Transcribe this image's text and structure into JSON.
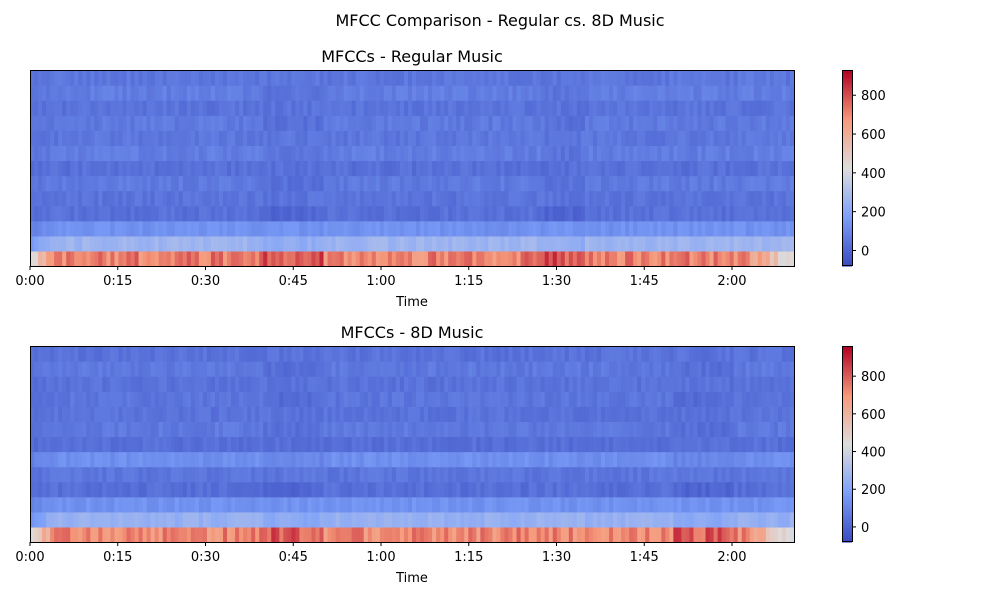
{
  "figure": {
    "suptitle": "MFCC Comparison - Regular cs. 8D Music"
  },
  "colormap": "coolwarm",
  "chart_data": [
    {
      "type": "heatmap",
      "title": "MFCCs - Regular Music",
      "xlabel": "Time",
      "ylabel": "",
      "x_ticks": [
        "0:00",
        "0:15",
        "0:30",
        "0:45",
        "1:00",
        "1:15",
        "1:30",
        "1:45",
        "2:00"
      ],
      "x_tick_seconds": [
        0,
        15,
        30,
        45,
        60,
        75,
        90,
        105,
        120
      ],
      "xlim_seconds": [
        0,
        130.6
      ],
      "n_coefficients": 13,
      "colorbar": {
        "ticks": [
          0,
          200,
          400,
          600,
          800
        ],
        "range": [
          -80,
          930
        ]
      },
      "coefficient_levels": [
        720,
        260,
        130,
        30,
        40,
        60,
        30,
        70,
        50,
        60,
        40,
        70,
        50
      ],
      "intense_segments_seconds": [
        [
          40,
          50
        ],
        [
          88,
          95
        ]
      ],
      "grid": false
    },
    {
      "type": "heatmap",
      "title": "MFCCs - 8D Music",
      "xlabel": "Time",
      "ylabel": "",
      "x_ticks": [
        "0:00",
        "0:15",
        "0:30",
        "0:45",
        "1:00",
        "1:15",
        "1:30",
        "1:45",
        "2:00"
      ],
      "x_tick_seconds": [
        0,
        15,
        30,
        45,
        60,
        75,
        90,
        105,
        120
      ],
      "xlim_seconds": [
        0,
        130.6
      ],
      "n_coefficients": 13,
      "colorbar": {
        "ticks": [
          0,
          200,
          400,
          600,
          800
        ],
        "range": [
          -80,
          960
        ]
      },
      "coefficient_levels": [
        730,
        250,
        140,
        30,
        50,
        130,
        30,
        60,
        40,
        50,
        40,
        60,
        40
      ],
      "intense_segments_seconds": [
        [
          40,
          50
        ],
        [
          110,
          120
        ]
      ],
      "grid": false
    }
  ]
}
